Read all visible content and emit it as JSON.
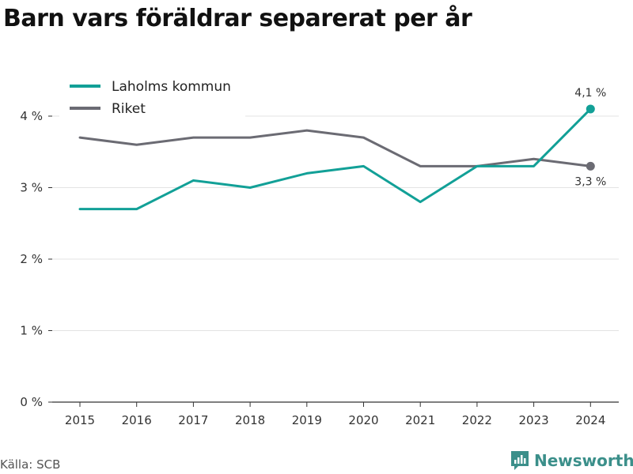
{
  "chart_data": {
    "type": "line",
    "title": "Barn vars föräldrar separerat per år",
    "x": [
      "2015",
      "2016",
      "2017",
      "2018",
      "2019",
      "2020",
      "2021",
      "2022",
      "2023",
      "2024"
    ],
    "series": [
      {
        "name": "Laholms kommun",
        "color": "#12a097",
        "values": [
          2.7,
          2.7,
          3.1,
          3.0,
          3.2,
          3.3,
          2.8,
          3.3,
          3.3,
          4.1
        ],
        "end_label": "4,1 %"
      },
      {
        "name": "Riket",
        "color": "#6b6b73",
        "values": [
          3.7,
          3.6,
          3.7,
          3.7,
          3.8,
          3.7,
          3.3,
          3.3,
          3.4,
          3.3
        ],
        "end_label": "3,3 %"
      }
    ],
    "y_ticks": [
      0,
      1,
      2,
      3,
      4
    ],
    "y_tick_labels": [
      "0 %",
      "1 %",
      "2 %",
      "3 %",
      "4 %"
    ],
    "ylim": [
      0,
      4.5
    ],
    "grid": true,
    "legend_position": "top-left"
  },
  "source": "Källa: SCB",
  "brand": {
    "name": "Newsworthy",
    "logo_icon": "newsworthy-logo-icon",
    "color": "#3b8f8a"
  }
}
